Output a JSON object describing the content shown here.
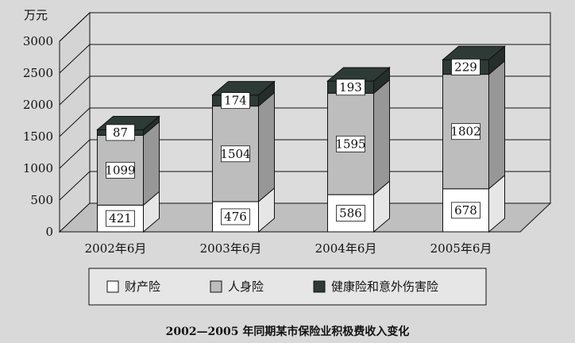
{
  "chart_data": {
    "type": "bar",
    "stacked": true,
    "three_d": true,
    "title": "2002—2005 年同期某市保险业积极费收入变化",
    "ylabel": "万元",
    "xlabel": "",
    "ylim": [
      0,
      3000
    ],
    "yticks": [
      0,
      500,
      1000,
      1500,
      2000,
      2500,
      3000
    ],
    "grid": true,
    "legend_position": "bottom",
    "categories": [
      "2002年6月",
      "2003年6月",
      "2004年6月",
      "2005年6月"
    ],
    "series": [
      {
        "name": "财产险",
        "values": [
          421,
          476,
          586,
          678
        ],
        "color": "#ffffff"
      },
      {
        "name": "人身险",
        "values": [
          1099,
          1504,
          1595,
          1802
        ],
        "color": "#bdbdbd"
      },
      {
        "name": "健康险和意外伤害险",
        "values": [
          87,
          174,
          193,
          229
        ],
        "color": "#2e3a35"
      }
    ]
  }
}
